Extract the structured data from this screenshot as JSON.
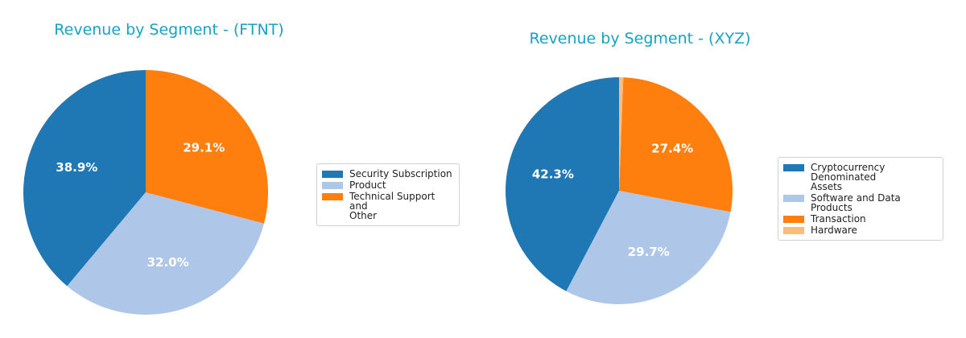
{
  "chart_data": [
    {
      "type": "pie",
      "title": "Revenue by Segment - (FTNT)",
      "categories": [
        "Security Subscription",
        "Product",
        "Technical Support and Other"
      ],
      "legend_labels": [
        "Security Subscription",
        "Product",
        "Technical Support and\nOther"
      ],
      "values": [
        38.9,
        32.0,
        29.1
      ],
      "value_labels": [
        "38.9%",
        "32.0%",
        "29.1%"
      ],
      "colors": [
        "#1f77b4",
        "#aec7e8",
        "#ff7f0e"
      ],
      "start_angle": 90,
      "direction": "counterclockwise",
      "legend_position": "right"
    },
    {
      "type": "pie",
      "title": "Revenue by Segment - (XYZ)",
      "categories": [
        "Cryptocurrency Denominated Assets",
        "Software and Data Products",
        "Transaction",
        "Hardware"
      ],
      "legend_labels": [
        "Cryptocurrency Denominated\nAssets",
        "Software and Data Products",
        "Transaction",
        "Hardware"
      ],
      "values": [
        42.3,
        29.7,
        27.4,
        0.6
      ],
      "value_labels": [
        "42.3%",
        "29.7%",
        "27.4%",
        ""
      ],
      "colors": [
        "#1f77b4",
        "#aec7e8",
        "#ff7f0e",
        "#ffbb78"
      ],
      "start_angle": 90,
      "direction": "counterclockwise",
      "legend_position": "right"
    }
  ]
}
